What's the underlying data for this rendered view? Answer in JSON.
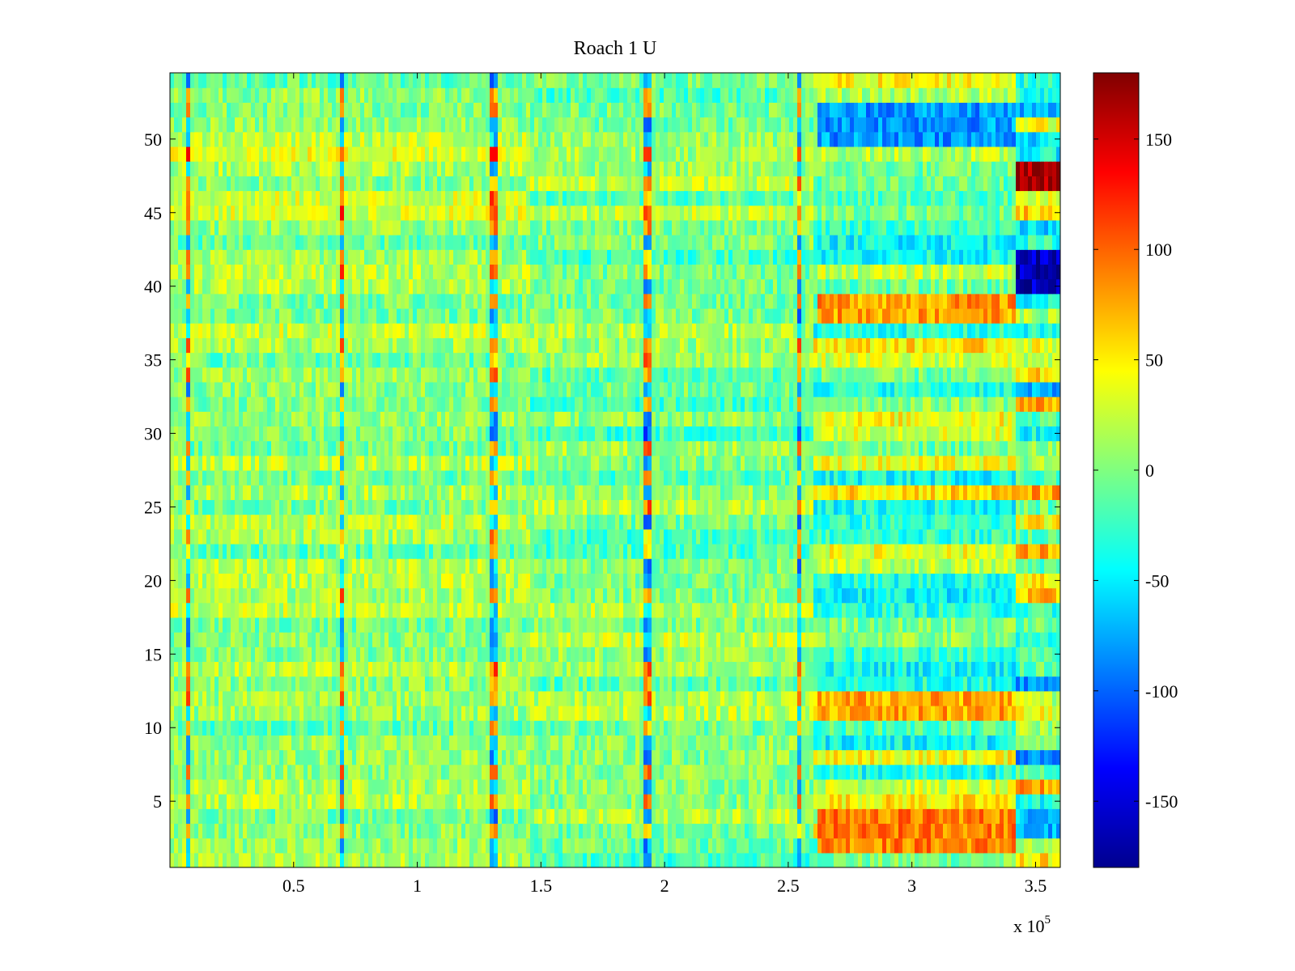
{
  "chart_data": {
    "type": "heatmap",
    "title": "Roach 1 U",
    "xlabel": "",
    "ylabel": "",
    "x_multiplier_label": "x 10",
    "x_multiplier_exponent": "5",
    "xlim": [
      0,
      3.6
    ],
    "ylim": [
      0.5,
      54.5
    ],
    "x_ticks": [
      0.5,
      1,
      1.5,
      2,
      2.5,
      3,
      3.5
    ],
    "x_tick_labels": [
      "0.5",
      "1",
      "1.5",
      "2",
      "2.5",
      "3",
      "3.5"
    ],
    "y_ticks": [
      5,
      10,
      15,
      20,
      25,
      30,
      35,
      40,
      45,
      50
    ],
    "y_tick_labels": [
      "5",
      "10",
      "15",
      "20",
      "25",
      "30",
      "35",
      "40",
      "45",
      "50"
    ],
    "rows": 54,
    "colormap": "jet",
    "clim": [
      -180,
      180
    ],
    "colorbar_ticks": [
      150,
      100,
      50,
      0,
      -50,
      -100,
      -150
    ],
    "colorbar_tick_labels": [
      "150",
      "100",
      "50",
      "0",
      "-50",
      "-100",
      "-150"
    ],
    "x_segments": [
      {
        "start": 0,
        "end": 1.45,
        "note": "baseline, mostly 0 to +30"
      },
      {
        "start": 1.45,
        "end": 2.6,
        "note": "mixed, -30 to +30"
      },
      {
        "start": 2.6,
        "end": 3.42,
        "note": "strong row contrast, -90 to +100"
      },
      {
        "start": 3.42,
        "end": 3.6,
        "note": "extreme values, -160 to +170"
      }
    ],
    "notable_values": [
      {
        "rows": [
          47,
          48
        ],
        "x_range": [
          3.42,
          3.6
        ],
        "value": 170
      },
      {
        "rows": [
          40,
          41,
          42
        ],
        "x_range": [
          3.42,
          3.6
        ],
        "value": -160
      },
      {
        "rows": [
          50,
          51,
          52
        ],
        "x_range": [
          2.62,
          3.42
        ],
        "value": -80
      },
      {
        "rows": [
          38,
          39
        ],
        "x_range": [
          2.62,
          3.42
        ],
        "value": 80
      },
      {
        "rows": [
          11,
          12
        ],
        "x_range": [
          2.62,
          3.42
        ],
        "value": 75
      },
      {
        "rows": [
          2,
          3,
          4
        ],
        "x_range": [
          2.62,
          3.42
        ],
        "value": 90
      }
    ],
    "artifact_columns_x": [
      0.07,
      0.69,
      1.31,
      1.93,
      2.55
    ]
  }
}
